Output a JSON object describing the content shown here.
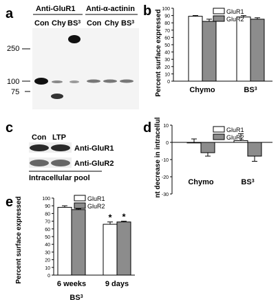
{
  "panels": {
    "a": {
      "letter": "a",
      "header_left": "Anti-GluR1",
      "header_right": "Anti-α-actinin",
      "lanes_left": [
        "Con",
        "Chy",
        "BS3"
      ],
      "lanes_right": [
        "Con",
        "Chy",
        "BS3"
      ],
      "markers": [
        "250",
        "100",
        "75"
      ]
    },
    "b": {
      "letter": "b",
      "ylabel": "Percent surface expressed",
      "yticks": [
        "0",
        "10",
        "20",
        "30",
        "40",
        "50",
        "60",
        "70",
        "80",
        "90",
        "100"
      ]
    },
    "c": {
      "letter": "c",
      "lanes": [
        "Con",
        "LTP"
      ],
      "label_top": "Anti-GluR1",
      "label_bottom": "Anti-GluR2",
      "footer": "Intracellular pool"
    },
    "d": {
      "letter": "d",
      "ylabel": "Percent decrease in intracellular pool",
      "yticks": [
        "10",
        "0",
        "-10",
        "-20",
        "-30"
      ]
    },
    "e": {
      "letter": "e",
      "ylabel": "Percent surface expressed",
      "yticks": [
        "0",
        "10",
        "20",
        "30",
        "40",
        "50",
        "60",
        "70",
        "80",
        "90",
        "100"
      ],
      "xgroup": "BS3",
      "star": "*"
    }
  },
  "colors": {
    "glur1": "#ffffff",
    "glur2": "#8c8c8c"
  },
  "chart_data": [
    {
      "panel": "b",
      "type": "bar",
      "categories": [
        "Chymo",
        "BS3"
      ],
      "series": [
        {
          "name": "GluR1",
          "values": [
            89,
            88
          ],
          "errors": [
            1,
            2
          ]
        },
        {
          "name": "GluR2",
          "values": [
            82,
            85
          ],
          "errors": [
            3,
            2
          ]
        }
      ],
      "ylim": [
        0,
        100
      ],
      "legend": "top-right"
    },
    {
      "panel": "d",
      "type": "bar",
      "categories": [
        "Chymo",
        "BS3"
      ],
      "series": [
        {
          "name": "GluR1",
          "values": [
            0,
            1
          ],
          "errors": [
            2,
            4
          ]
        },
        {
          "name": "GluR2",
          "values": [
            -6,
            -8
          ],
          "errors": [
            2,
            3
          ]
        }
      ],
      "ylim": [
        -30,
        10
      ],
      "legend": "top-right"
    },
    {
      "panel": "e",
      "type": "bar",
      "categories": [
        "6 weeks",
        "9 days"
      ],
      "series": [
        {
          "name": "GluR1",
          "values": [
            88,
            66
          ],
          "errors": [
            2,
            3
          ]
        },
        {
          "name": "GluR2",
          "values": [
            85,
            69
          ],
          "errors": [
            1,
            1
          ]
        }
      ],
      "ylim": [
        0,
        100
      ],
      "legend": "top-left"
    }
  ]
}
